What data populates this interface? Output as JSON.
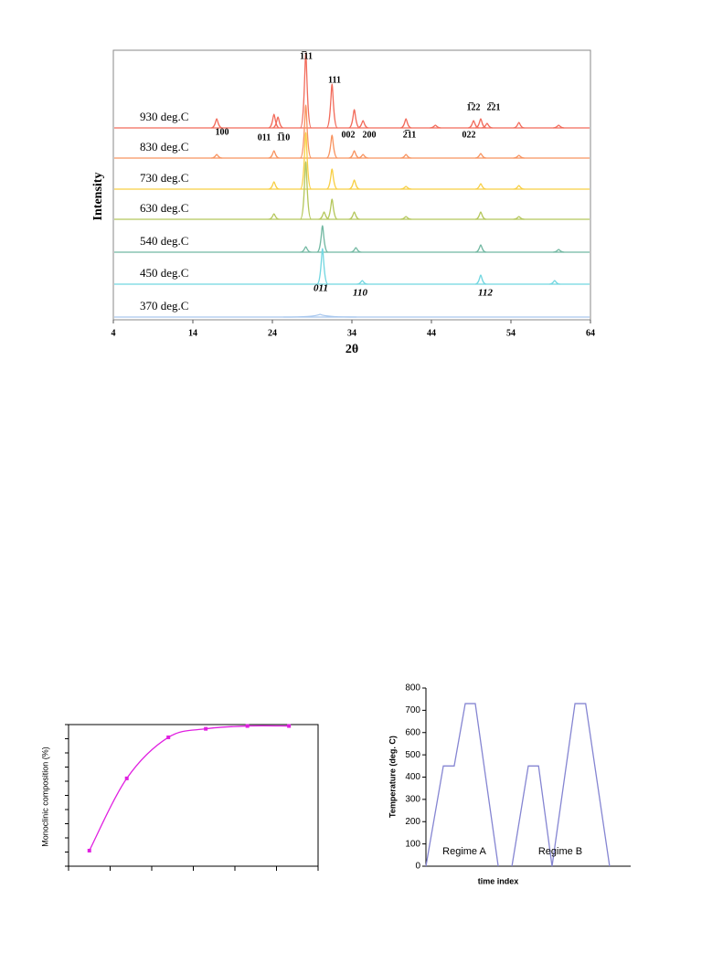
{
  "chart_data": [
    {
      "type": "spectrum",
      "ylabel": "Intensity",
      "xlabel": "2θ",
      "xlim": [
        4,
        64
      ],
      "xticks": [
        4,
        14,
        24,
        34,
        44,
        54,
        64
      ],
      "series": [
        {
          "name": "930 deg.C",
          "color": "#f26b5b",
          "x": [
            17,
            24.2,
            24.7,
            28.2,
            31.5,
            34.3,
            35.4,
            40.8,
            44.5,
            49.3,
            50.2,
            51,
            55,
            60
          ],
          "values": [
            10,
            15,
            12,
            82,
            48,
            20,
            8,
            10,
            3,
            8,
            10,
            5,
            6,
            3
          ]
        },
        {
          "name": "830 deg.C",
          "color": "#f8935f",
          "x": [
            17,
            24.2,
            28.2,
            31.5,
            34.3,
            35.4,
            40.8,
            50.2,
            55
          ],
          "values": [
            4,
            8,
            58,
            25,
            8,
            4,
            4,
            5,
            3
          ]
        },
        {
          "name": "730 deg.C",
          "color": "#f7cf45",
          "x": [
            24.2,
            28.2,
            31.5,
            34.3,
            40.8,
            50.2,
            55
          ],
          "values": [
            8,
            62,
            22,
            10,
            3,
            6,
            4
          ]
        },
        {
          "name": "630 deg.C",
          "color": "#b5c75c",
          "x": [
            24.2,
            28.2,
            30.5,
            31.5,
            34.3,
            40.8,
            50.2,
            55
          ],
          "values": [
            6,
            63,
            8,
            22,
            8,
            3,
            8,
            3
          ]
        },
        {
          "name": "540 deg.C",
          "color": "#72b8a2",
          "x": [
            28.2,
            30.3,
            34.5,
            50.2,
            60
          ],
          "values": [
            6,
            29,
            5,
            8,
            3
          ]
        },
        {
          "name": "450 deg.C",
          "color": "#72d6e0",
          "x": [
            30.3,
            35.3,
            50.2,
            59.5
          ],
          "values": [
            39,
            4,
            10,
            4
          ]
        },
        {
          "name": "370 deg.C",
          "color": "#a9c8ee",
          "x": [
            30
          ],
          "values": [
            3
          ]
        }
      ],
      "annotations": [
        "1̅11",
        "111",
        "100",
        "011",
        "1̅10",
        "002",
        "200",
        "2̅11",
        "022",
        "1̅22",
        "2̅21"
      ],
      "annotations_italic": [
        "011",
        "110",
        "112"
      ]
    },
    {
      "type": "line",
      "ylabel": "Monoclinic composition (%)",
      "color": "#e020e0",
      "markers": true,
      "x": [
        0.5,
        1.4,
        2.4,
        3.3,
        4.3,
        5.3
      ],
      "values": [
        11,
        62,
        91,
        97,
        99,
        99
      ],
      "xlim": [
        0,
        6
      ],
      "xticks": [
        0,
        1,
        2,
        3,
        4,
        5,
        6
      ],
      "ylim": [
        0,
        100
      ],
      "yticks": [
        0,
        10,
        20,
        30,
        40,
        50,
        60,
        70,
        80,
        90,
        100
      ],
      "tick_labels": false
    },
    {
      "type": "line",
      "ylabel": "Temperature (deg. C)",
      "xlabel": "time index",
      "color": "#8585d2",
      "markers": false,
      "x": [
        0,
        8.5,
        13.8,
        19.2,
        24.1,
        35.3,
        38,
        42,
        50,
        55,
        61.6,
        72.8,
        78,
        89.7
      ],
      "values": [
        0,
        450,
        450,
        730,
        730,
        0,
        null,
        0,
        450,
        450,
        0,
        730,
        730,
        0
      ],
      "xlim": [
        0,
        100
      ],
      "ylim": [
        0,
        800
      ],
      "yticks": [
        0,
        100,
        200,
        300,
        400,
        500,
        600,
        700,
        800
      ],
      "tick_labels": true,
      "annotations": [
        "Regime A",
        "Regime B"
      ]
    }
  ]
}
